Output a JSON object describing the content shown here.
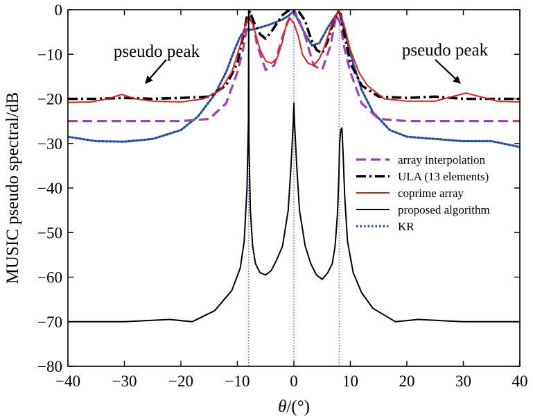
{
  "chart_data": {
    "type": "line",
    "xlabel": "θ/(°)",
    "ylabel": "MUSIC pseudo spectral/dB",
    "xlim": [
      -40,
      40
    ],
    "ylim": [
      -80,
      0
    ],
    "xticks": [
      -40,
      -30,
      -20,
      -10,
      0,
      10,
      20,
      30,
      40
    ],
    "yticks": [
      0,
      -10,
      -20,
      -30,
      -40,
      -50,
      -60,
      -70,
      -80
    ],
    "xtick_labels": [
      "−40",
      "−30",
      "−20",
      "−10",
      "0",
      "10",
      "20",
      "30",
      "40"
    ],
    "ytick_labels": [
      "0",
      "−10",
      "−20",
      "−30",
      "−40",
      "−50",
      "−60",
      "−70",
      "−80"
    ],
    "grid": false,
    "legend_position": "right",
    "true_directions": [
      -8,
      0,
      8
    ],
    "annotations": [
      {
        "text": "pseudo peak",
        "x": -30,
        "y": -19
      },
      {
        "text": "pseudo peak",
        "x": 30.5,
        "y": -18.7
      }
    ],
    "series": [
      {
        "name": "array interpolation",
        "color": "#a040b8",
        "style": "dashed",
        "x": [
          -40,
          -30,
          -20,
          -15,
          -12,
          -10,
          -9,
          -8.2,
          -7.5,
          -6.5,
          -5,
          -3.5,
          -2,
          -1,
          -0.3,
          0,
          0.3,
          1,
          2,
          3.5,
          5,
          6.5,
          7.5,
          8.2,
          9,
          10,
          12,
          15,
          20,
          30,
          40
        ],
        "values": [
          -25,
          -25,
          -25,
          -24.5,
          -21,
          -14,
          -9,
          -3,
          -1.2,
          -8,
          -13.5,
          -12.5,
          -6,
          -2.5,
          -0.8,
          0,
          -0.8,
          -2.5,
          -6,
          -12.5,
          -13.5,
          -8,
          -1.2,
          -3,
          -9,
          -14,
          -21,
          -24.5,
          -25,
          -25,
          -25
        ]
      },
      {
        "name": "ULA (13 elements)",
        "color": "#000000",
        "style": "dashdot",
        "x": [
          -40,
          -35,
          -30,
          -25,
          -20,
          -15,
          -12,
          -10,
          -9,
          -8.3,
          -7.8,
          -7,
          -6,
          -5,
          -4,
          -3,
          -2,
          -1,
          0,
          1,
          2,
          3,
          4,
          5,
          6,
          7,
          7.8,
          8.3,
          9,
          10,
          12,
          15,
          20,
          25,
          30,
          35,
          40
        ],
        "values": [
          -20,
          -20,
          -19.8,
          -20,
          -19.8,
          -19.5,
          -17,
          -12,
          -6,
          -1.5,
          -0.5,
          -3,
          -5.5,
          -6.5,
          -5,
          -3,
          -1.2,
          -0.2,
          0,
          -0.6,
          -2.5,
          -6.5,
          -9,
          -9.8,
          -7,
          -2.5,
          -0.5,
          -1,
          -6,
          -12,
          -17,
          -19.5,
          -19.8,
          -19.5,
          -20,
          -20,
          -20
        ]
      },
      {
        "name": "coprime array",
        "color": "#e02020",
        "style": "solid",
        "x": [
          -40,
          -36,
          -33,
          -30.5,
          -28,
          -25,
          -20,
          -16,
          -13,
          -11,
          -9.5,
          -8.5,
          -8,
          -7.2,
          -6,
          -5,
          -4,
          -3,
          -2,
          -1.3,
          -0.8,
          0,
          0.8,
          1.5,
          2.5,
          3.5,
          4.5,
          5.5,
          6.5,
          7.3,
          8,
          8.8,
          10,
          11.5,
          13,
          16,
          20,
          25,
          28,
          30.5,
          33,
          36,
          40
        ],
        "values": [
          -20.8,
          -20.7,
          -20,
          -19,
          -20,
          -20.5,
          -20.7,
          -20,
          -18,
          -14,
          -8,
          -3,
          -1.5,
          -3.5,
          -9,
          -11.5,
          -12,
          -11,
          -7,
          -3,
          -1.8,
          -3,
          -6,
          -10,
          -12,
          -12.5,
          -11,
          -8,
          -4,
          -1.5,
          -0.3,
          -3,
          -9,
          -14,
          -17,
          -20,
          -20.5,
          -20.5,
          -19.5,
          -18.7,
          -19.5,
          -20.5,
          -20.7
        ]
      },
      {
        "name": "proposed algorithm",
        "color": "#000000",
        "style": "solid",
        "x": [
          -40,
          -30,
          -22,
          -18,
          -14,
          -11,
          -9.5,
          -8.8,
          -8.3,
          -8.05,
          -8,
          -7.95,
          -7.7,
          -7.3,
          -6.8,
          -6,
          -5,
          -4,
          -3,
          -2,
          -1,
          -0.5,
          -0.1,
          0,
          0.1,
          0.5,
          1,
          2,
          3,
          4,
          5,
          6,
          6.8,
          7.3,
          7.7,
          7.95,
          8.1,
          8.3,
          8.5,
          8.7,
          9,
          9.5,
          10.5,
          12,
          14,
          18,
          22,
          30,
          40
        ],
        "values": [
          -70,
          -70,
          -69.5,
          -70,
          -67.5,
          -63,
          -58,
          -52,
          -40,
          -25,
          0,
          -30,
          -45,
          -53,
          -57,
          -59,
          -59.5,
          -58.5,
          -56,
          -53,
          -45,
          -35,
          -25,
          -21,
          -25,
          -35,
          -45,
          -53,
          -57,
          -59.5,
          -60.5,
          -59,
          -57,
          -53,
          -46,
          -38,
          -30,
          -27,
          -26.5,
          -32,
          -42,
          -52,
          -59,
          -63.5,
          -67,
          -70,
          -69.5,
          -70,
          -70
        ]
      },
      {
        "name": "KR",
        "color": "#2a4ea0",
        "style": "dotted",
        "x": [
          -40,
          -35,
          -30,
          -25,
          -20,
          -17,
          -14,
          -12,
          -10.5,
          -9.5,
          -8.5,
          -7.5,
          -6,
          -4,
          -2,
          -0.8,
          0,
          0.8,
          2,
          3.2,
          4.5,
          6,
          7.3,
          8,
          9,
          10.5,
          12,
          14,
          17,
          20,
          25,
          30,
          35,
          40
        ],
        "values": [
          -28.5,
          -29.5,
          -29.6,
          -29,
          -27,
          -24,
          -19,
          -14,
          -9,
          -6,
          -4.5,
          -4.5,
          -4,
          -3.2,
          -2.2,
          -1.2,
          -0.3,
          -2.5,
          -5.5,
          -8,
          -7.5,
          -4,
          -1.5,
          -0.3,
          -5,
          -12,
          -18,
          -23,
          -27,
          -28.5,
          -29,
          -29.5,
          -29.5,
          -30.8
        ]
      }
    ]
  }
}
